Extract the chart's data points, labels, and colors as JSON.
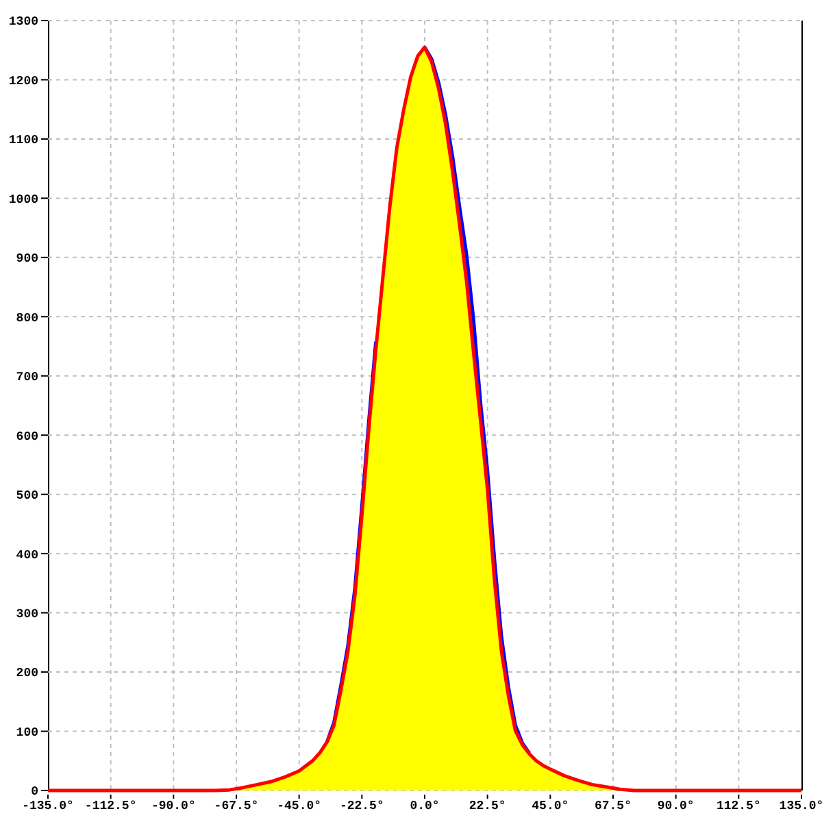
{
  "chart_data": {
    "type": "area",
    "x": [
      -135,
      -112.5,
      -90,
      -75,
      -70,
      -65,
      -60,
      -55,
      -50,
      -45,
      -42.5,
      -40,
      -37.5,
      -35,
      -32.5,
      -30,
      -27.5,
      -25,
      -22.5,
      -20,
      -17.5,
      -15,
      -12.5,
      -10,
      -7.5,
      -5,
      -2.5,
      0,
      2.5,
      5,
      7.5,
      10,
      12.5,
      15,
      17.5,
      20,
      22.5,
      25,
      27.5,
      30,
      32.5,
      35,
      37.5,
      40,
      42.5,
      45,
      50,
      55,
      60,
      65,
      70,
      75,
      90,
      112.5,
      135
    ],
    "series": [
      {
        "color": "#ffff00",
        "values": [
          null,
          null,
          null,
          0,
          1,
          5,
          10,
          15,
          23,
          33,
          42,
          51,
          64,
          82,
          115,
          178,
          245,
          342,
          480,
          625,
          758,
          866,
          986,
          1085,
          1150,
          1205,
          1240,
          1255,
          1235,
          1195,
          1140,
          1070,
          985,
          905,
          795,
          655,
          540,
          390,
          260,
          175,
          110,
          80,
          63,
          50,
          42,
          36,
          25,
          17,
          10,
          6,
          2,
          0,
          null,
          null,
          null
        ]
      },
      {
        "type": "line",
        "color": "#0000ff",
        "values": [
          null,
          null,
          null,
          null,
          null,
          null,
          null,
          null,
          null,
          null,
          null,
          null,
          null,
          82,
          115,
          178,
          245,
          342,
          480,
          625,
          758,
          null,
          null,
          null,
          null,
          null,
          null,
          1255,
          1235,
          1195,
          1140,
          1070,
          985,
          905,
          795,
          655,
          540,
          390,
          260,
          175,
          110,
          80,
          63,
          null,
          null,
          null,
          null,
          null,
          null,
          null,
          null,
          null,
          null,
          null,
          null
        ]
      },
      {
        "type": "line",
        "color": "#ff0000",
        "values": [
          0,
          0,
          0,
          0,
          1,
          5,
          10,
          15,
          23,
          33,
          42,
          51,
          64,
          82,
          110,
          170,
          235,
          330,
          465,
          612,
          745,
          866,
          986,
          1085,
          1150,
          1205,
          1240,
          1255,
          1230,
          1185,
          1125,
          1045,
          955,
          860,
          740,
          625,
          508,
          355,
          235,
          160,
          101,
          77,
          62,
          50,
          42,
          36,
          25,
          17,
          10,
          6,
          2,
          0,
          0,
          0,
          0
        ]
      }
    ],
    "xlim": [
      -135,
      135
    ],
    "xticks": [
      {
        "value": -135,
        "label": "-135.0°"
      },
      {
        "value": -112.5,
        "label": "-112.5°"
      },
      {
        "value": -90,
        "label": "-90.0°"
      },
      {
        "value": -67.5,
        "label": "-67.5°"
      },
      {
        "value": -45,
        "label": "-45.0°"
      },
      {
        "value": -22.5,
        "label": "-22.5°"
      },
      {
        "value": 0,
        "label": "0.0°"
      },
      {
        "value": 22.5,
        "label": "22.5°"
      },
      {
        "value": 45,
        "label": "45.0°"
      },
      {
        "value": 67.5,
        "label": "67.5°"
      },
      {
        "value": 90,
        "label": "90.0°"
      },
      {
        "value": 112.5,
        "label": "112.5°"
      },
      {
        "value": 135,
        "label": "135.0°"
      }
    ],
    "ylim": [
      0,
      1300
    ],
    "yticks": [
      0,
      100,
      200,
      300,
      400,
      500,
      600,
      700,
      800,
      900,
      1000,
      1100,
      1200,
      1300
    ],
    "grid": true,
    "marker": "none",
    "line_style": "solid"
  }
}
